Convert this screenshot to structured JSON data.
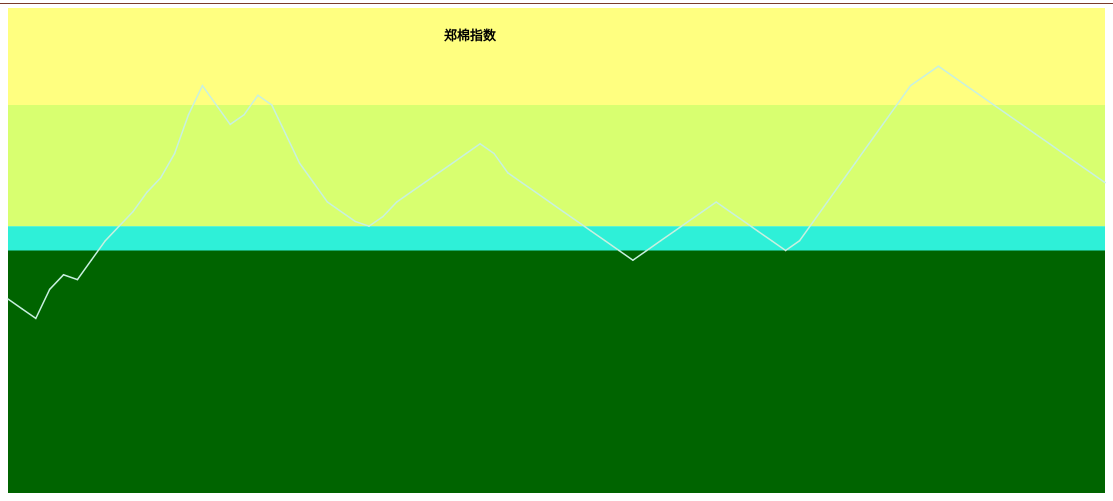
{
  "chart_data": {
    "type": "line",
    "title": "郑棉指数",
    "xlabel": "",
    "ylabel": "",
    "grid": false,
    "legend": "none",
    "bands": [
      {
        "name": "band-yellow",
        "color": "#ffff80",
        "from": 0.8,
        "to": 1.0
      },
      {
        "name": "band-lime",
        "color": "#d8ff70",
        "from": 0.55,
        "to": 0.8
      },
      {
        "name": "band-cyan",
        "color": "#2ef0d8",
        "from": 0.5,
        "to": 0.55
      },
      {
        "name": "band-dark-green",
        "color": "#006400",
        "from": 0.0,
        "to": 0.5
      }
    ],
    "ylim": [
      0,
      100
    ],
    "x": [
      0,
      1,
      2,
      3,
      4,
      5,
      6,
      7,
      8,
      9,
      10,
      11,
      12,
      13,
      14,
      15,
      16,
      17,
      18,
      19,
      20,
      21,
      22,
      23,
      24,
      25,
      26,
      27,
      28,
      29,
      30,
      31,
      32,
      33,
      34,
      35,
      36,
      37,
      38,
      39,
      40,
      41,
      42,
      43,
      44,
      45,
      46,
      47,
      48,
      49,
      50,
      51,
      52,
      53,
      54,
      55,
      56,
      57,
      58,
      59,
      60,
      61,
      62,
      63,
      64,
      65,
      66,
      67,
      68,
      69,
      70,
      71,
      72,
      73,
      74,
      75,
      76,
      77,
      78,
      79
    ],
    "series": [
      {
        "name": "",
        "color": "#c8f0e0",
        "values": [
          40,
          38,
          36,
          42,
          45,
          44,
          48,
          52,
          55,
          58,
          62,
          65,
          70,
          78,
          84,
          80,
          76,
          78,
          82,
          80,
          74,
          68,
          64,
          60,
          58,
          56,
          55,
          57,
          60,
          62,
          64,
          66,
          68,
          70,
          72,
          70,
          66,
          64,
          62,
          60,
          58,
          56,
          54,
          52,
          50,
          48,
          50,
          52,
          54,
          56,
          58,
          60,
          58,
          56,
          54,
          52,
          50,
          52,
          56,
          60,
          64,
          68,
          72,
          76,
          80,
          84,
          86,
          88,
          86,
          84,
          82,
          80,
          78,
          76,
          74,
          72,
          70,
          68,
          66,
          64
        ]
      }
    ]
  }
}
